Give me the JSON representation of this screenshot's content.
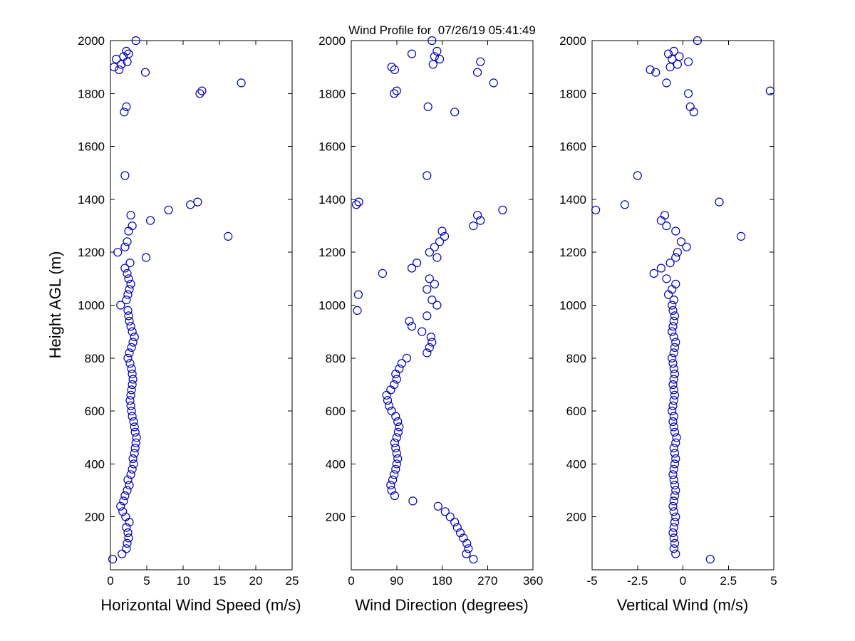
{
  "chart_data": {
    "type": "scatter",
    "title": "Wind Profile for  07/26/19 05:41:49",
    "marker": {
      "shape": "open-circle",
      "color": "#0000b3",
      "radius": 5.5
    },
    "y_axis": {
      "label": "Height AGL (m)",
      "lim": [
        0,
        2000
      ],
      "ticks": [
        200,
        400,
        600,
        800,
        1000,
        1200,
        1400,
        1600,
        1800,
        2000
      ]
    },
    "heights_m": [
      40,
      60,
      80,
      100,
      120,
      140,
      160,
      180,
      200,
      220,
      240,
      260,
      280,
      300,
      320,
      340,
      360,
      380,
      400,
      420,
      440,
      460,
      480,
      500,
      520,
      540,
      560,
      580,
      600,
      620,
      640,
      660,
      680,
      700,
      720,
      740,
      760,
      780,
      800,
      820,
      840,
      860,
      880,
      900,
      920,
      940,
      960,
      980,
      1000,
      1020,
      1040,
      1060,
      1080,
      1100,
      1120,
      1140,
      1160,
      1180,
      1200,
      1220,
      1240,
      1260,
      1280,
      1300,
      1320,
      1340,
      1360,
      1380,
      1390,
      1490,
      1730,
      1750,
      1800,
      1810,
      1840,
      1880,
      1890,
      1900,
      1910,
      1920,
      1930,
      1940,
      1950,
      1960,
      2000
    ],
    "panels": [
      {
        "id": "horizontal-wind-speed",
        "xlabel": "Horizontal Wind Speed (m/s)",
        "xlim": [
          0,
          25
        ],
        "xticks": [
          0,
          5,
          10,
          15,
          20,
          25
        ],
        "values": [
          0.3,
          1.6,
          2.2,
          2.3,
          2.5,
          2.4,
          2.2,
          2.6,
          2.1,
          1.7,
          1.4,
          1.8,
          2.0,
          2.3,
          2.6,
          2.4,
          2.8,
          3.0,
          3.2,
          3.1,
          3.3,
          3.4,
          3.5,
          3.6,
          3.4,
          3.3,
          3.2,
          3.0,
          2.9,
          2.8,
          2.7,
          2.8,
          2.9,
          3.0,
          3.1,
          3.0,
          2.9,
          2.7,
          2.4,
          2.6,
          2.9,
          3.1,
          3.3,
          3.0,
          2.8,
          2.6,
          2.5,
          2.4,
          1.4,
          2.2,
          2.4,
          2.6,
          2.8,
          2.5,
          2.3,
          2.0,
          2.7,
          4.9,
          1.0,
          2.0,
          2.3,
          16.2,
          2.5,
          3.0,
          5.5,
          2.8,
          8.0,
          11.0,
          12.0,
          2.0,
          1.9,
          2.2,
          12.3,
          12.6,
          18.0,
          4.8,
          1.2,
          0.5,
          1.5,
          2.3,
          0.8,
          1.8,
          2.5,
          2.2,
          3.5
        ]
      },
      {
        "id": "wind-direction",
        "xlabel": "Wind Direction (degrees)",
        "xlim": [
          0,
          360
        ],
        "xticks": [
          0,
          90,
          180,
          270,
          360
        ],
        "values": [
          242,
          228,
          232,
          229,
          222,
          216,
          210,
          205,
          196,
          186,
          172,
          122,
          86,
          80,
          78,
          82,
          85,
          88,
          90,
          92,
          90,
          88,
          86,
          90,
          93,
          95,
          92,
          88,
          80,
          75,
          72,
          70,
          78,
          85,
          90,
          88,
          95,
          100,
          110,
          150,
          155,
          160,
          158,
          140,
          120,
          115,
          150,
          12,
          170,
          160,
          14,
          150,
          165,
          155,
          62,
          120,
          130,
          170,
          155,
          165,
          175,
          185,
          180,
          242,
          256,
          250,
          300,
          10,
          15,
          150,
          205,
          152,
          85,
          90,
          282,
          250,
          86,
          80,
          162,
          256,
          175,
          165,
          120,
          170,
          160
        ]
      },
      {
        "id": "vertical-wind",
        "xlabel": "Vertical Wind (m/s)",
        "xlim": [
          -5,
          5
        ],
        "xticks": [
          -5,
          -2.5,
          0,
          2.5,
          5
        ],
        "values": [
          1.5,
          -0.4,
          -0.5,
          -0.45,
          -0.5,
          -0.55,
          -0.5,
          -0.45,
          -0.4,
          -0.5,
          -0.55,
          -0.5,
          -0.45,
          -0.4,
          -0.45,
          -0.5,
          -0.55,
          -0.5,
          -0.45,
          -0.4,
          -0.45,
          -0.5,
          -0.4,
          -0.35,
          -0.45,
          -0.5,
          -0.55,
          -0.5,
          -0.6,
          -0.55,
          -0.5,
          -0.45,
          -0.5,
          -0.55,
          -0.5,
          -0.45,
          -0.5,
          -0.55,
          -0.6,
          -0.5,
          -0.45,
          -0.4,
          -0.5,
          -0.6,
          -0.55,
          -0.5,
          -0.45,
          -0.55,
          -0.6,
          -0.5,
          -0.8,
          -0.6,
          -0.4,
          -0.9,
          -1.6,
          -1.2,
          -0.7,
          -0.4,
          -0.3,
          0.2,
          -0.1,
          3.2,
          -0.4,
          -0.9,
          -1.2,
          -1.0,
          -4.8,
          -3.2,
          2.0,
          -2.5,
          0.6,
          0.4,
          0.3,
          4.8,
          -0.9,
          -1.5,
          -1.8,
          -0.7,
          -0.3,
          0.3,
          -0.6,
          -0.2,
          -0.8,
          -0.5,
          0.8
        ]
      }
    ]
  }
}
